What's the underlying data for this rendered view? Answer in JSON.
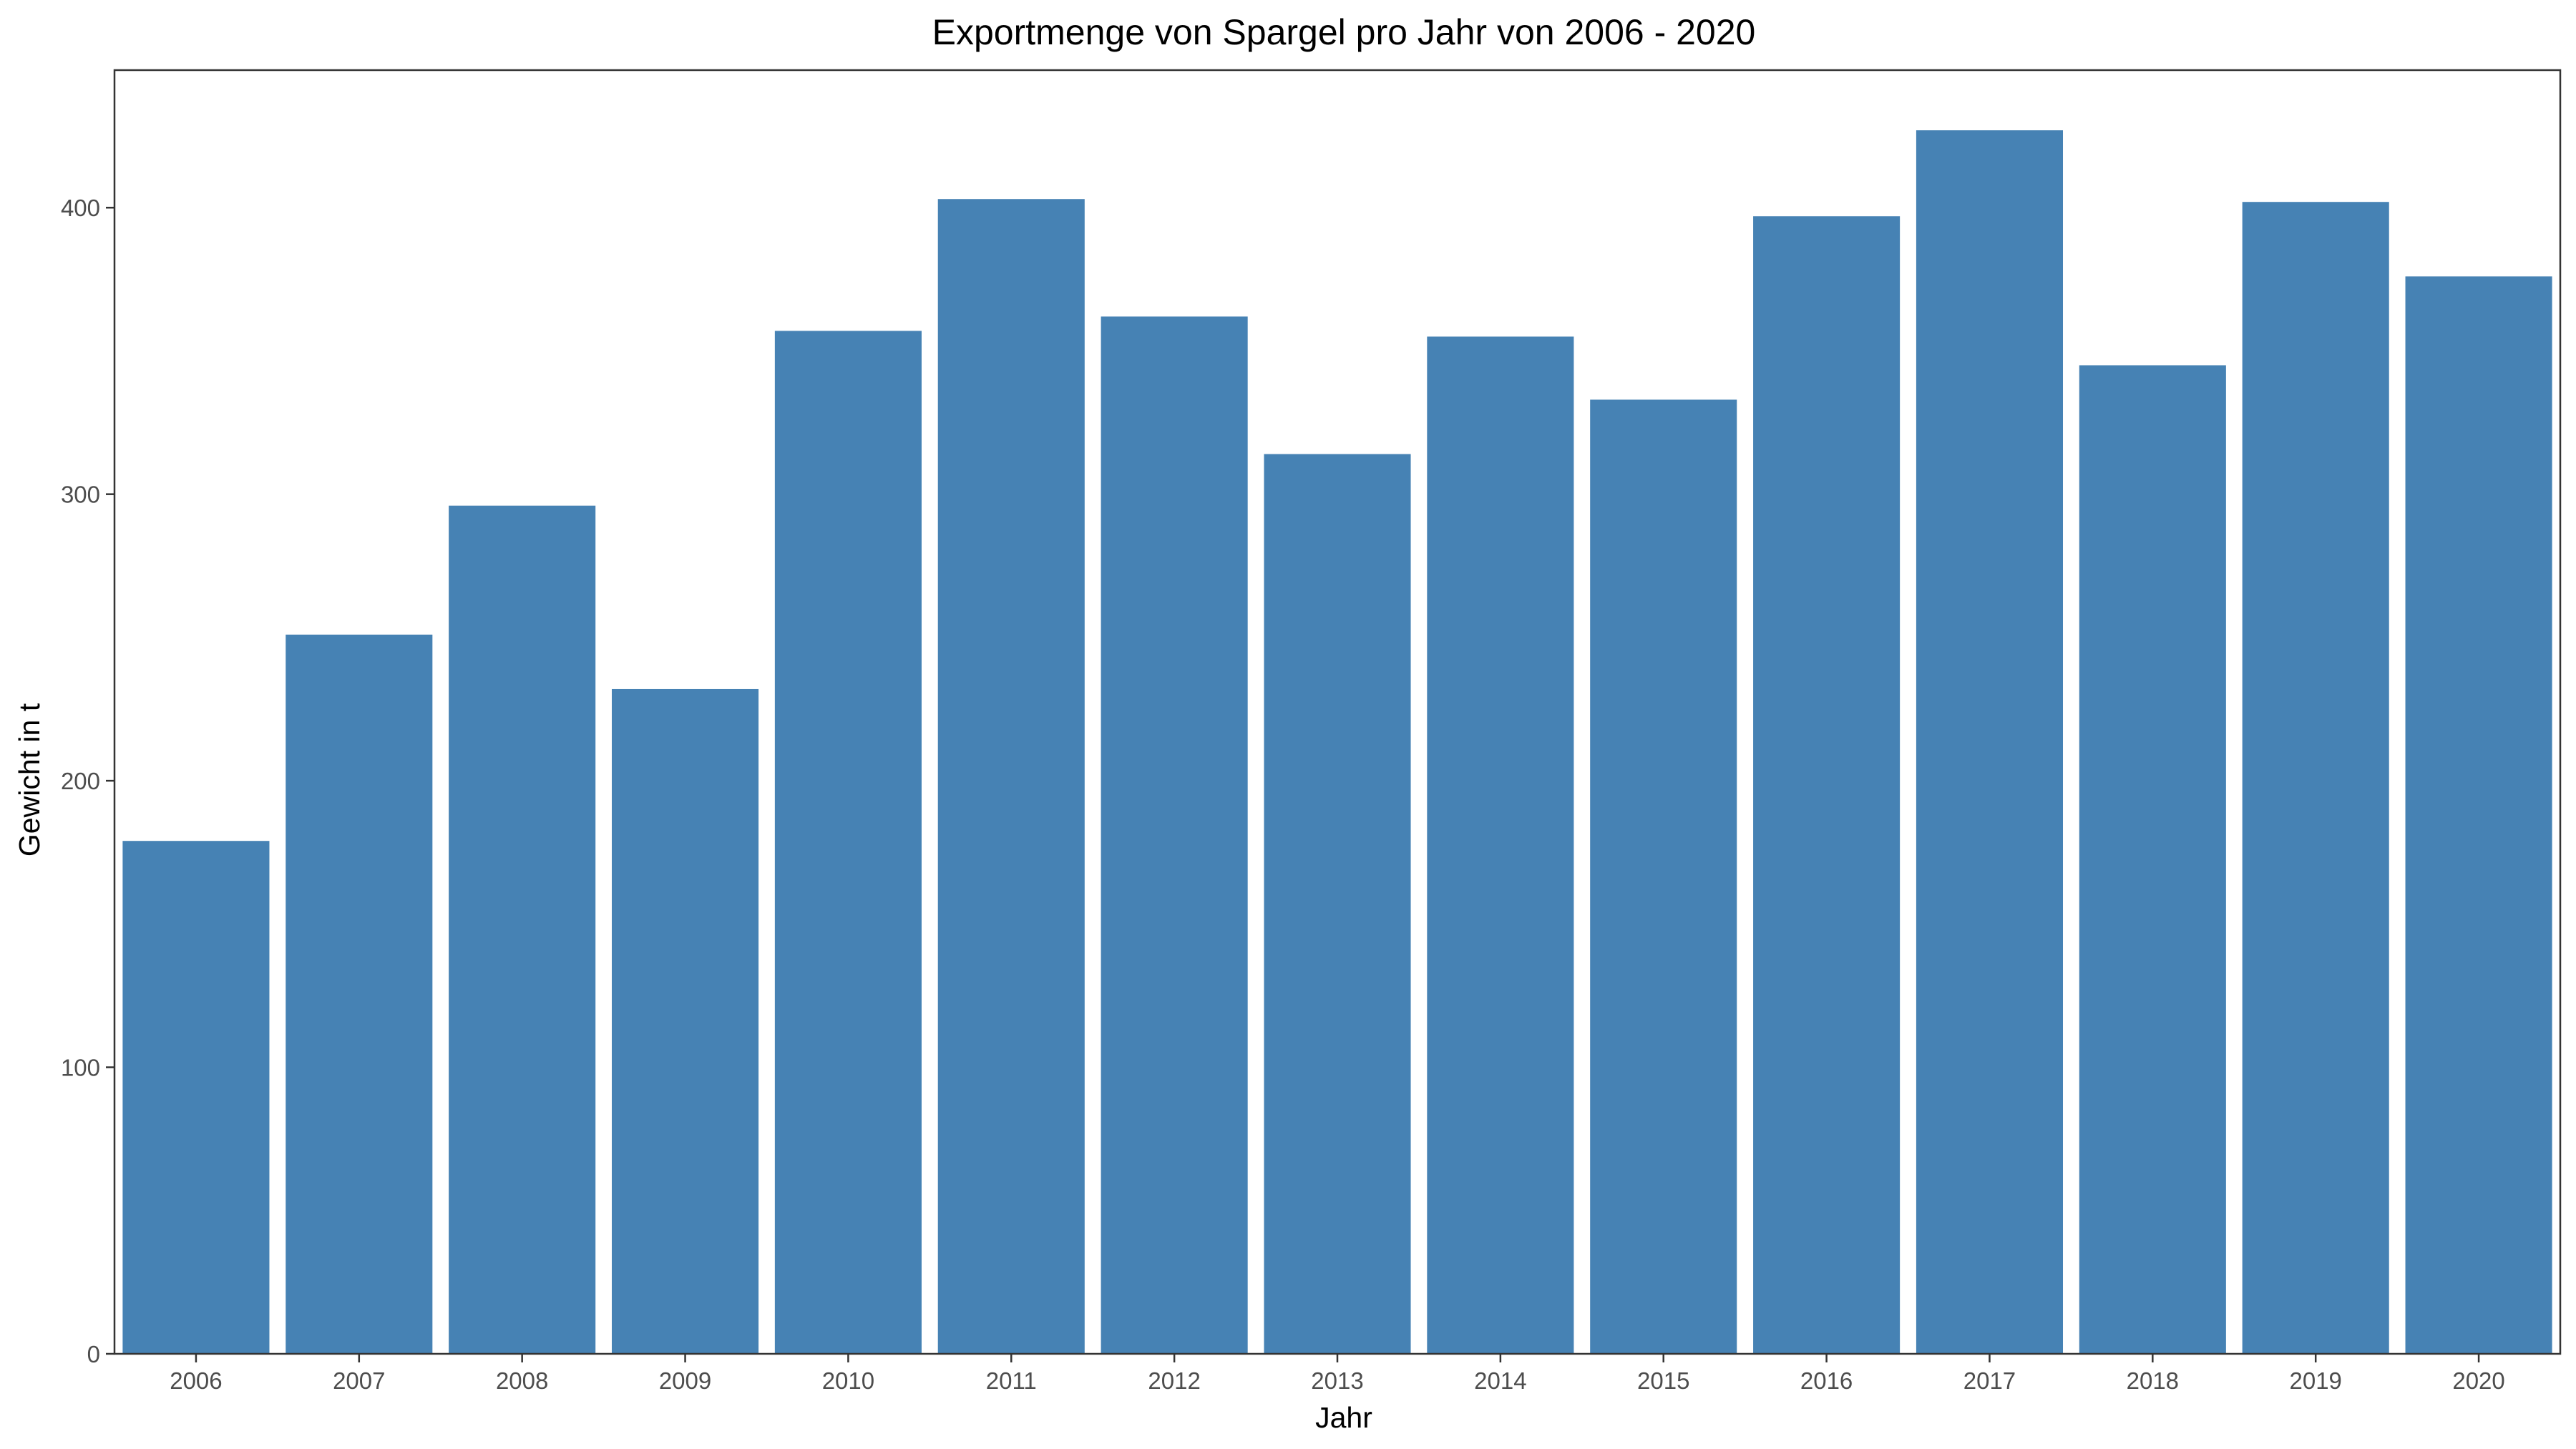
{
  "chart_data": {
    "type": "bar",
    "title": "Exportmenge von Spargel pro Jahr von 2006 - 2020",
    "xlabel": "Jahr",
    "ylabel": "Gewicht in t",
    "categories": [
      "2006",
      "2007",
      "2008",
      "2009",
      "2010",
      "2011",
      "2012",
      "2013",
      "2014",
      "2015",
      "2016",
      "2017",
      "2018",
      "2019",
      "2020"
    ],
    "values": [
      179,
      251,
      296,
      232,
      357,
      403,
      362,
      314,
      355,
      333,
      397,
      427,
      345,
      402,
      376
    ],
    "ylim": [
      0,
      448
    ],
    "yticks": [
      0,
      100,
      200,
      300,
      400
    ],
    "bar_color": "#4682b4",
    "grid": false,
    "legend": "none"
  }
}
